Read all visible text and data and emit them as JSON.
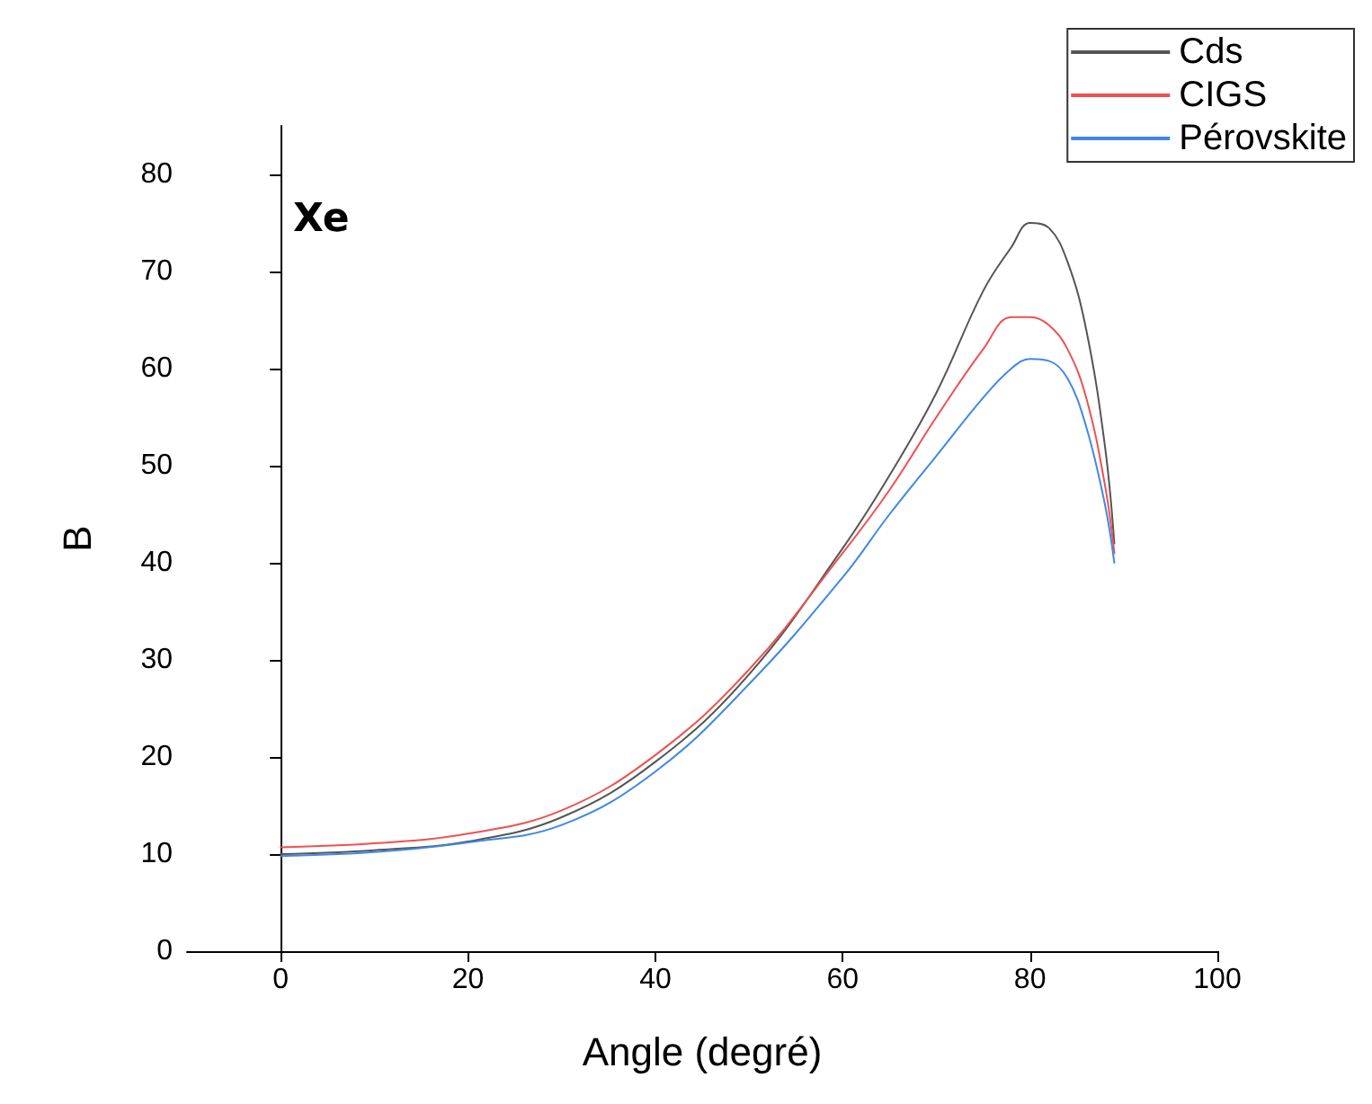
{
  "chart_data": {
    "type": "line",
    "title": "Xe",
    "xlabel": "Angle (degré)",
    "ylabel": "B",
    "x": [
      0,
      10,
      20,
      30,
      40,
      50,
      60,
      65,
      70,
      75,
      78,
      80,
      82,
      84,
      86,
      88,
      89
    ],
    "series": [
      {
        "name": "Cds",
        "color": "#555555",
        "values": [
          10.0,
          10.4,
          11.3,
          13.8,
          19.5,
          28.5,
          41.5,
          49,
          57.5,
          68,
          72.5,
          75,
          74.5,
          71,
          64,
          52,
          42
        ]
      },
      {
        "name": "CIGS",
        "color": "#f05050",
        "values": [
          10.7,
          11.1,
          12.1,
          14.5,
          20.2,
          29,
          41,
          47.5,
          55,
          62,
          65.3,
          65.3,
          64.5,
          62,
          57,
          48,
          41
        ]
      },
      {
        "name": "Pérovskite",
        "color": "#3f88e6",
        "values": [
          9.8,
          10.2,
          11.2,
          13,
          18.5,
          27.5,
          38.5,
          45,
          51,
          57,
          60,
          61,
          60.8,
          59,
          54,
          46,
          40
        ]
      }
    ],
    "xlim": [
      -10,
      100
    ],
    "xticks": [
      0,
      20,
      40,
      60,
      80,
      100
    ],
    "ylim": [
      0,
      85
    ],
    "yticks": [
      0,
      10,
      20,
      30,
      40,
      50,
      60,
      70,
      80
    ],
    "legend": "top right",
    "marker": "none",
    "line_style": "solid"
  }
}
